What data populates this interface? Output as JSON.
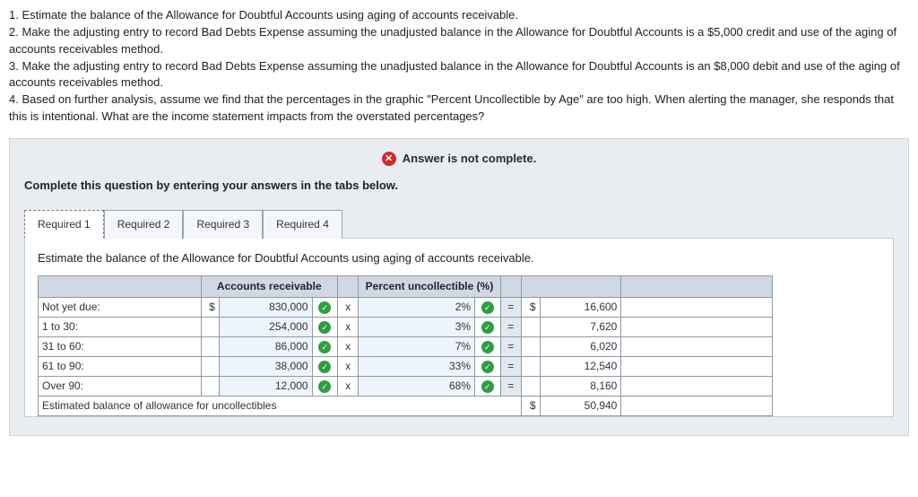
{
  "questions": [
    "1. Estimate the balance of the Allowance for Doubtful Accounts using aging of accounts receivable.",
    "2. Make the adjusting entry to record Bad Debts Expense assuming the unadjusted balance in the Allowance for Doubtful Accounts is a $5,000 credit and use of the aging of accounts receivables method.",
    "3. Make the adjusting entry to record Bad Debts Expense assuming the unadjusted balance in the Allowance for Doubtful Accounts is an $8,000 debit and use of the aging of accounts receivables method.",
    "4. Based on further analysis, assume we find that the percentages in the graphic \"Percent Uncollectible by Age\" are too high. When alerting the manager, she responds that this is intentional. What are the income statement impacts from the overstated percentages?"
  ],
  "banner": {
    "notComplete": "Answer is not complete.",
    "instruction": "Complete this question by entering your answers in the tabs below."
  },
  "tabs": [
    "Required 1",
    "Required 2",
    "Required 3",
    "Required 4"
  ],
  "activeTabPrompt": "Estimate the balance of the Allowance for Doubtful Accounts using aging of accounts receivable.",
  "tableHeaders": {
    "accounts": "Accounts receivable",
    "percent": "Percent uncollectible (%)"
  },
  "rows": [
    {
      "label": "Not yet due:",
      "currency": "$",
      "amount": "830,000",
      "pct": "2%",
      "rcur": "$",
      "result": "16,600"
    },
    {
      "label": "1 to 30:",
      "currency": "",
      "amount": "254,000",
      "pct": "3%",
      "rcur": "",
      "result": "7,620"
    },
    {
      "label": "31 to 60:",
      "currency": "",
      "amount": "86,000",
      "pct": "7%",
      "rcur": "",
      "result": "6,020"
    },
    {
      "label": "61 to 90:",
      "currency": "",
      "amount": "38,000",
      "pct": "33%",
      "rcur": "",
      "result": "12,540"
    },
    {
      "label": "Over 90:",
      "currency": "",
      "amount": "12,000",
      "pct": "68%",
      "rcur": "",
      "result": "8,160"
    }
  ],
  "totalRow": {
    "label": "Estimated balance of allowance for uncollectibles",
    "rcur": "$",
    "result": "50,940"
  },
  "ops": {
    "times": "x",
    "equals": "="
  },
  "colors": {
    "headerBg": "#cfd8e3",
    "inputBg": "#edf4fb",
    "checkGreen": "#2e9e44",
    "errorRed": "#d62828"
  }
}
